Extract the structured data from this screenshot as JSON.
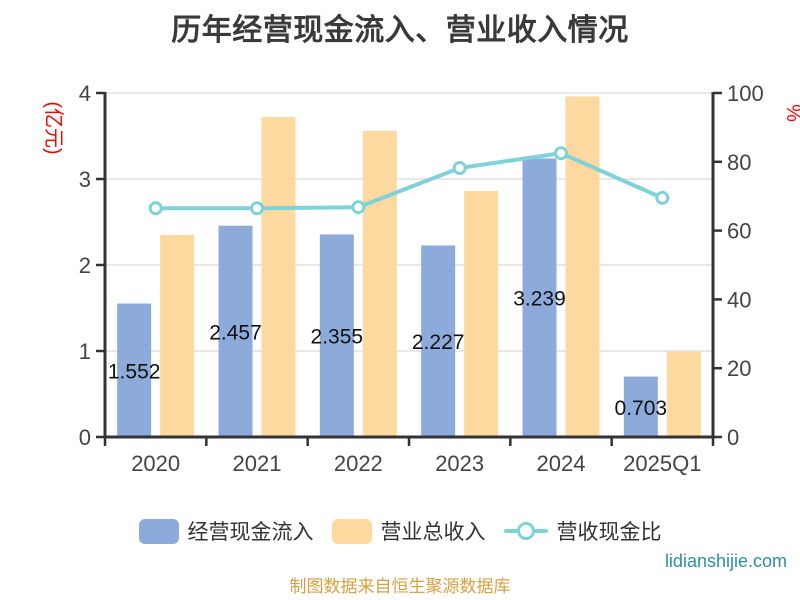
{
  "page": {
    "title": "历年经营现金流入、营业收入情况",
    "footer_note": "制图数据来自恒生聚源数据库",
    "watermark": "lidianshijie.com",
    "background": "#ffffff"
  },
  "legend": {
    "items": [
      {
        "label": "经营现金流入",
        "type": "bar",
        "color": "#8CABDB"
      },
      {
        "label": "营业总收入",
        "type": "bar",
        "color": "#FDD9A0"
      },
      {
        "label": "营收现金比",
        "type": "line",
        "color": "#7FD2D8"
      }
    ]
  },
  "chart_data": {
    "type": "bar",
    "combo": "grouped bars + line on secondary axis",
    "title": "历年经营现金流入、营业收入情况",
    "categories": [
      "2020",
      "2021",
      "2022",
      "2023",
      "2024",
      "2025Q1"
    ],
    "series": [
      {
        "name": "经营现金流入",
        "type": "bar",
        "y_axis": "left",
        "color": "#8CABDB",
        "values": [
          1.552,
          2.457,
          2.355,
          2.227,
          3.239,
          0.703
        ],
        "data_labels": [
          "1.552",
          "2.457",
          "2.355",
          "2.227",
          "3.239",
          "0.703"
        ]
      },
      {
        "name": "营业总收入",
        "type": "bar",
        "y_axis": "left",
        "color": "#FDD9A0",
        "values": [
          2.35,
          3.72,
          3.56,
          2.86,
          3.96,
          0.99
        ]
      },
      {
        "name": "营收现金比",
        "type": "line",
        "y_axis": "right",
        "color": "#7FD2D8",
        "marker": "hollow-circle",
        "values": [
          66.5,
          66.5,
          66.8,
          78.2,
          82.5,
          69.5
        ]
      }
    ],
    "left_axis": {
      "unit": "(亿元)",
      "unit_color": "#FF0000",
      "min": 0,
      "max": 4,
      "ticks": [
        0,
        1,
        2,
        3,
        4
      ]
    },
    "right_axis": {
      "unit": "%",
      "unit_color": "#FF0000",
      "min": 0,
      "max": 100,
      "ticks": [
        0,
        20,
        40,
        60,
        80,
        100
      ]
    },
    "grid": "horizontal",
    "legend_position": "bottom",
    "styles": {
      "axis_color": "#333333",
      "tick_label_color": "#444444",
      "grid_color": "#e0e0e0",
      "bar_label_color": "#111111",
      "bar_label_size": 21,
      "tick_label_size": 22
    }
  }
}
